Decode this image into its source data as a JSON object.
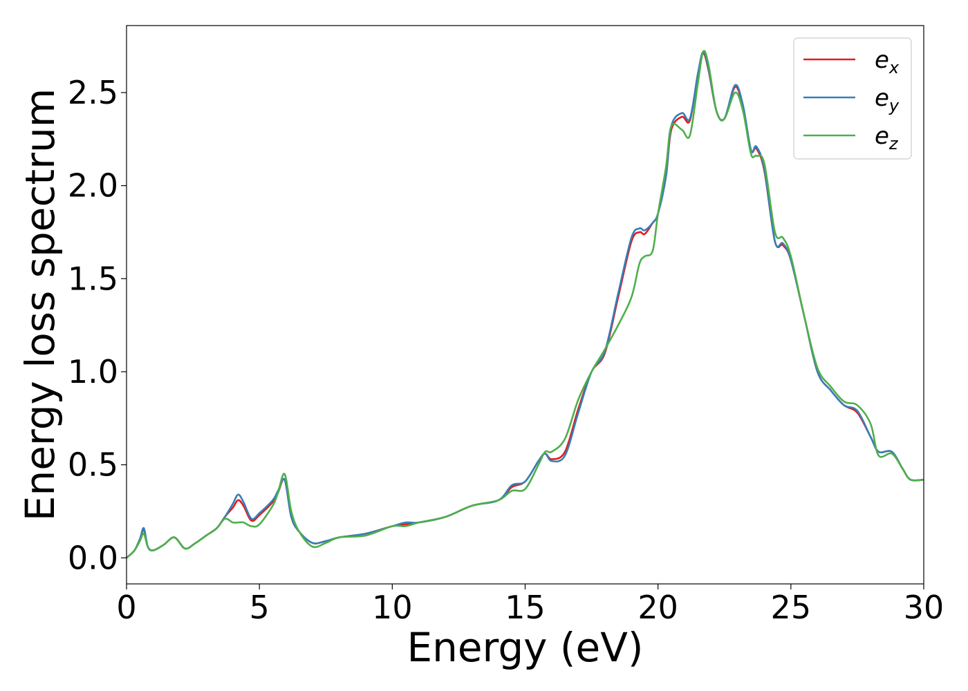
{
  "chart_data": {
    "type": "line",
    "title": "",
    "xlabel": "Energy (eV)",
    "ylabel": "Energy loss spectrum",
    "xlim": [
      0,
      30
    ],
    "ylim": [
      -0.14,
      2.86
    ],
    "xticks": [
      0,
      5,
      10,
      15,
      20,
      25,
      30
    ],
    "xtick_labels": [
      "0",
      "5",
      "10",
      "15",
      "20",
      "25",
      "30"
    ],
    "yticks": [
      0.0,
      0.5,
      1.0,
      1.5,
      2.0,
      2.5
    ],
    "ytick_labels": [
      "0.0",
      "0.5",
      "1.0",
      "1.5",
      "2.0",
      "2.5"
    ],
    "grid": false,
    "legend_position": "top-right",
    "series": [
      {
        "name": "e_x",
        "legend_base": "e",
        "legend_sub": "x",
        "color": "#e41a1c",
        "x": [
          0,
          0.3,
          0.5,
          0.65,
          0.8,
          1.0,
          1.4,
          1.8,
          2.2,
          2.6,
          3.0,
          3.4,
          3.7,
          4.0,
          4.2,
          4.4,
          4.7,
          5.0,
          5.5,
          5.7,
          5.95,
          6.2,
          6.5,
          7.0,
          7.5,
          8.0,
          9.0,
          10.0,
          10.5,
          11.0,
          12.0,
          13.0,
          14.0,
          14.5,
          15.0,
          15.5,
          15.75,
          16.0,
          16.5,
          17.0,
          17.5,
          18.0,
          18.5,
          19.0,
          19.3,
          19.5,
          19.8,
          20.0,
          20.3,
          20.5,
          20.9,
          21.2,
          21.5,
          21.7,
          21.9,
          22.2,
          22.5,
          22.9,
          23.2,
          23.5,
          23.7,
          24.0,
          24.4,
          24.7,
          25.0,
          25.5,
          26.0,
          26.5,
          27.0,
          27.5,
          28.0,
          28.3,
          28.8,
          29.2,
          29.5,
          30.0
        ],
        "y": [
          0.0,
          0.04,
          0.1,
          0.15,
          0.06,
          0.04,
          0.07,
          0.11,
          0.05,
          0.08,
          0.12,
          0.16,
          0.22,
          0.27,
          0.31,
          0.28,
          0.2,
          0.23,
          0.3,
          0.35,
          0.42,
          0.22,
          0.14,
          0.08,
          0.09,
          0.11,
          0.13,
          0.17,
          0.18,
          0.19,
          0.22,
          0.28,
          0.31,
          0.38,
          0.41,
          0.52,
          0.56,
          0.53,
          0.57,
          0.8,
          1.0,
          1.1,
          1.4,
          1.7,
          1.75,
          1.74,
          1.8,
          1.85,
          2.05,
          2.3,
          2.37,
          2.35,
          2.6,
          2.71,
          2.62,
          2.4,
          2.36,
          2.53,
          2.42,
          2.19,
          2.2,
          2.08,
          1.7,
          1.68,
          1.6,
          1.3,
          1.0,
          0.9,
          0.82,
          0.78,
          0.65,
          0.57,
          0.57,
          0.48,
          0.42,
          0.42
        ]
      },
      {
        "name": "e_y",
        "legend_base": "e",
        "legend_sub": "y",
        "color": "#377eb8",
        "x": [
          0,
          0.3,
          0.5,
          0.65,
          0.8,
          1.0,
          1.4,
          1.8,
          2.2,
          2.6,
          3.0,
          3.4,
          3.7,
          4.0,
          4.2,
          4.4,
          4.7,
          5.0,
          5.5,
          5.7,
          5.95,
          6.2,
          6.5,
          7.0,
          7.5,
          8.0,
          9.0,
          10.0,
          10.5,
          11.0,
          12.0,
          13.0,
          14.0,
          14.5,
          15.0,
          15.5,
          15.75,
          16.0,
          16.5,
          17.0,
          17.5,
          18.0,
          18.5,
          19.0,
          19.3,
          19.5,
          19.8,
          20.0,
          20.3,
          20.5,
          20.9,
          21.2,
          21.5,
          21.7,
          21.9,
          22.2,
          22.5,
          22.9,
          23.2,
          23.5,
          23.7,
          24.0,
          24.4,
          24.7,
          25.0,
          25.5,
          26.0,
          26.5,
          27.0,
          27.5,
          28.0,
          28.3,
          28.8,
          29.2,
          29.5,
          30.0
        ],
        "y": [
          0.0,
          0.04,
          0.1,
          0.16,
          0.06,
          0.04,
          0.07,
          0.11,
          0.05,
          0.08,
          0.12,
          0.16,
          0.22,
          0.29,
          0.34,
          0.3,
          0.21,
          0.24,
          0.31,
          0.36,
          0.42,
          0.22,
          0.14,
          0.08,
          0.09,
          0.11,
          0.13,
          0.17,
          0.19,
          0.19,
          0.22,
          0.28,
          0.31,
          0.39,
          0.41,
          0.52,
          0.56,
          0.52,
          0.55,
          0.78,
          1.0,
          1.11,
          1.42,
          1.72,
          1.77,
          1.76,
          1.8,
          1.85,
          2.05,
          2.32,
          2.39,
          2.36,
          2.6,
          2.72,
          2.63,
          2.4,
          2.36,
          2.54,
          2.43,
          2.19,
          2.21,
          2.09,
          1.7,
          1.69,
          1.6,
          1.3,
          1.0,
          0.9,
          0.82,
          0.79,
          0.65,
          0.57,
          0.57,
          0.48,
          0.42,
          0.42
        ]
      },
      {
        "name": "e_z",
        "legend_base": "e",
        "legend_sub": "z",
        "color": "#4daf4a",
        "x": [
          0,
          0.3,
          0.5,
          0.65,
          0.8,
          1.0,
          1.4,
          1.8,
          2.2,
          2.6,
          3.0,
          3.4,
          3.7,
          4.0,
          4.2,
          4.4,
          4.7,
          5.0,
          5.5,
          5.7,
          5.95,
          6.2,
          6.5,
          7.0,
          7.5,
          8.0,
          9.0,
          10.0,
          10.5,
          11.0,
          12.0,
          13.0,
          14.0,
          14.5,
          15.0,
          15.5,
          15.75,
          16.0,
          16.5,
          17.0,
          17.5,
          18.0,
          18.5,
          19.0,
          19.3,
          19.5,
          19.8,
          20.0,
          20.3,
          20.5,
          20.9,
          21.2,
          21.5,
          21.7,
          21.9,
          22.2,
          22.5,
          22.9,
          23.2,
          23.5,
          23.7,
          24.0,
          24.4,
          24.7,
          25.0,
          25.5,
          26.0,
          26.5,
          27.0,
          27.5,
          28.0,
          28.3,
          28.8,
          29.2,
          29.5,
          30.0
        ],
        "y": [
          0.0,
          0.04,
          0.09,
          0.13,
          0.06,
          0.04,
          0.07,
          0.11,
          0.05,
          0.08,
          0.12,
          0.16,
          0.21,
          0.19,
          0.19,
          0.19,
          0.17,
          0.18,
          0.28,
          0.35,
          0.45,
          0.25,
          0.14,
          0.06,
          0.08,
          0.11,
          0.12,
          0.17,
          0.17,
          0.19,
          0.22,
          0.28,
          0.31,
          0.36,
          0.37,
          0.5,
          0.57,
          0.57,
          0.64,
          0.85,
          1.0,
          1.12,
          1.25,
          1.4,
          1.58,
          1.62,
          1.65,
          1.85,
          2.1,
          2.32,
          2.3,
          2.27,
          2.55,
          2.72,
          2.65,
          2.4,
          2.36,
          2.5,
          2.4,
          2.17,
          2.16,
          2.12,
          1.75,
          1.72,
          1.62,
          1.3,
          1.02,
          0.92,
          0.84,
          0.82,
          0.72,
          0.55,
          0.56,
          0.48,
          0.42,
          0.42
        ]
      }
    ]
  }
}
